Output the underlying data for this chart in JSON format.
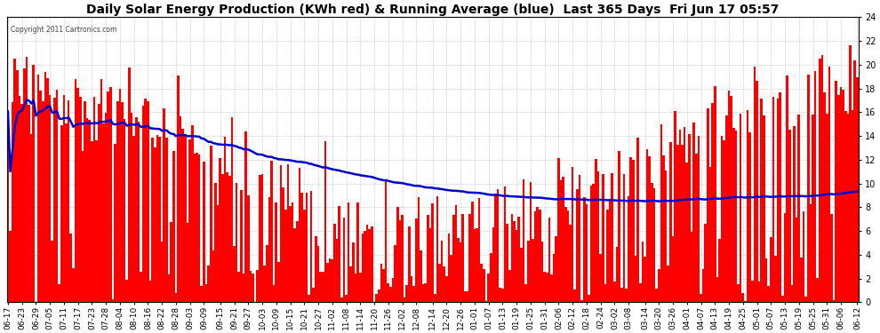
{
  "title": "Daily Solar Energy Production (KWh red) & Running Average (blue)  Last 365 Days  Fri Jun 17 05:57",
  "copyright_text": "Copyright 2011 Cartronics.com",
  "bar_color": "#ff0000",
  "avg_line_color": "#0000cc",
  "background_color": "#ffffff",
  "grid_color": "#aaaaaa",
  "ylim": [
    0.0,
    24.0
  ],
  "yticks": [
    0.0,
    2.0,
    4.0,
    6.0,
    8.0,
    10.0,
    12.0,
    14.0,
    16.0,
    18.0,
    20.0,
    22.0,
    24.0
  ],
  "figsize": [
    9.9,
    3.75
  ],
  "dpi": 100,
  "x_labels": [
    "06-17",
    "06-23",
    "06-29",
    "07-05",
    "07-11",
    "07-17",
    "07-23",
    "07-28",
    "08-04",
    "08-10",
    "08-16",
    "08-22",
    "08-28",
    "09-03",
    "09-09",
    "09-15",
    "09-21",
    "09-27",
    "10-03",
    "10-09",
    "10-15",
    "10-21",
    "10-27",
    "11-02",
    "11-08",
    "11-14",
    "11-20",
    "11-26",
    "12-02",
    "12-08",
    "12-14",
    "12-20",
    "12-26",
    "01-01",
    "01-07",
    "01-13",
    "01-19",
    "01-25",
    "01-31",
    "02-06",
    "02-12",
    "02-18",
    "02-24",
    "03-02",
    "03-08",
    "03-14",
    "03-20",
    "03-26",
    "04-01",
    "04-07",
    "04-13",
    "04-19",
    "04-25",
    "05-01",
    "05-07",
    "05-13",
    "05-19",
    "05-25",
    "05-31",
    "06-06",
    "06-12"
  ],
  "title_fontsize": 10,
  "tick_fontsize": 7,
  "xlabel_fontsize": 6.5
}
